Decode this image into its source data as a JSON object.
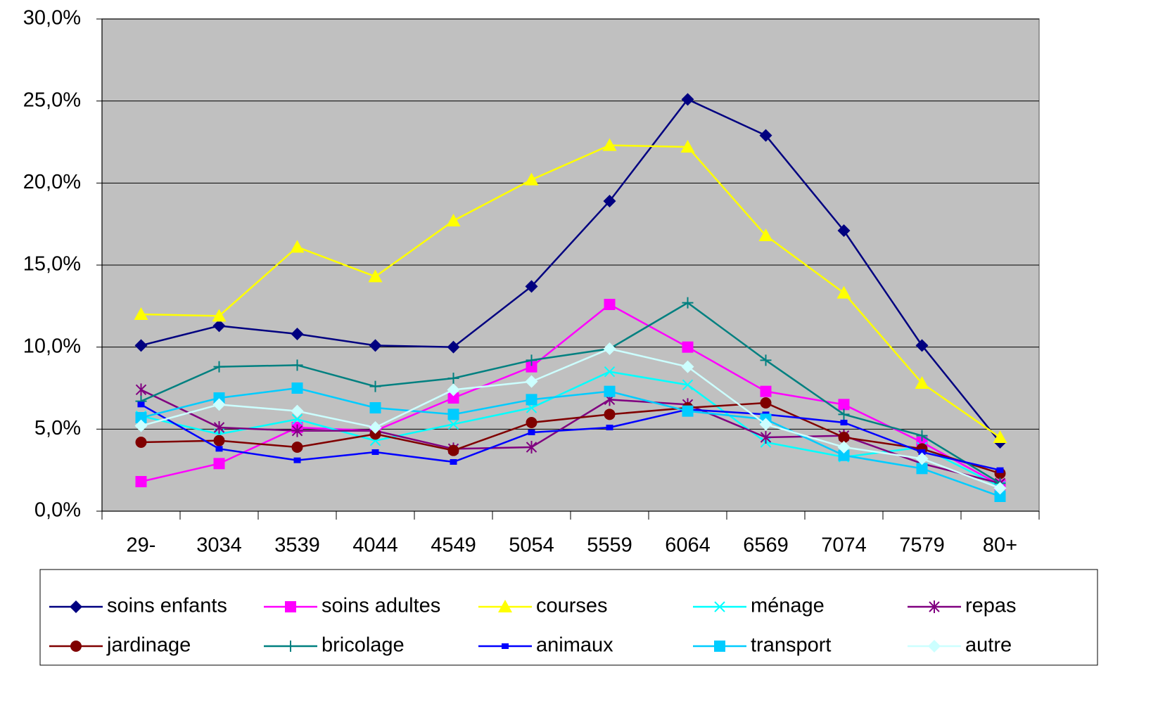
{
  "chart_data": {
    "type": "line",
    "categories": [
      "29-",
      "3034",
      "3539",
      "4044",
      "4549",
      "5054",
      "5559",
      "6064",
      "6569",
      "7074",
      "7579",
      "80+"
    ],
    "ylim": [
      0,
      30
    ],
    "yticks": [
      {
        "value": 0,
        "label": "0,0%"
      },
      {
        "value": 5,
        "label": "5,0%"
      },
      {
        "value": 10,
        "label": "10,0%"
      },
      {
        "value": 15,
        "label": "15,0%"
      },
      {
        "value": 20,
        "label": "20,0%"
      },
      {
        "value": 25,
        "label": "25,0%"
      },
      {
        "value": 30,
        "label": "30,0%"
      }
    ],
    "grid": true,
    "legend": "bottom",
    "series": [
      {
        "name": "soins enfants",
        "color": "#000080",
        "marker": "diamond",
        "values": [
          10.1,
          11.3,
          10.8,
          10.1,
          10.0,
          13.7,
          18.9,
          25.1,
          22.9,
          17.1,
          10.1,
          4.2
        ]
      },
      {
        "name": "soins adultes",
        "color": "#ff00ff",
        "marker": "square",
        "values": [
          1.8,
          2.9,
          5.1,
          4.9,
          6.9,
          8.8,
          12.6,
          10.0,
          7.3,
          6.5,
          4.2,
          1.6
        ]
      },
      {
        "name": "courses",
        "color": "#ffff00",
        "marker": "triangle",
        "values": [
          12.0,
          11.9,
          16.1,
          14.3,
          17.7,
          20.2,
          22.3,
          22.2,
          16.8,
          13.3,
          7.8,
          4.5
        ]
      },
      {
        "name": "ménage",
        "color": "#00ffff",
        "marker": "x",
        "values": [
          5.8,
          4.7,
          5.6,
          4.3,
          5.3,
          6.3,
          8.5,
          7.7,
          4.2,
          3.3,
          3.9,
          1.5
        ]
      },
      {
        "name": "repas",
        "color": "#800080",
        "marker": "star",
        "values": [
          7.4,
          5.1,
          4.9,
          4.9,
          3.8,
          3.9,
          6.8,
          6.5,
          4.5,
          4.6,
          2.9,
          1.7
        ]
      },
      {
        "name": "jardinage",
        "color": "#800000",
        "marker": "circle",
        "values": [
          4.2,
          4.3,
          3.9,
          4.7,
          3.7,
          5.4,
          5.9,
          6.3,
          6.6,
          4.5,
          3.8,
          2.3
        ]
      },
      {
        "name": "bricolage",
        "color": "#008080",
        "marker": "plus",
        "values": [
          6.7,
          8.8,
          8.9,
          7.6,
          8.1,
          9.2,
          9.9,
          12.7,
          9.2,
          5.9,
          4.6,
          1.7
        ]
      },
      {
        "name": "animaux",
        "color": "#0000ff",
        "marker": "small-square",
        "values": [
          6.5,
          3.8,
          3.1,
          3.6,
          3.0,
          4.8,
          5.1,
          6.2,
          5.9,
          5.4,
          3.6,
          2.5
        ]
      },
      {
        "name": "transport",
        "color": "#00ccff",
        "marker": "square",
        "values": [
          5.7,
          6.9,
          7.5,
          6.3,
          5.9,
          6.8,
          7.3,
          6.1,
          5.6,
          3.4,
          2.6,
          0.9
        ]
      },
      {
        "name": "autre",
        "color": "#ccffff",
        "marker": "diamond",
        "values": [
          5.2,
          6.5,
          6.1,
          5.1,
          7.4,
          7.9,
          9.9,
          8.8,
          5.3,
          3.9,
          3.2,
          1.4
        ]
      }
    ]
  }
}
